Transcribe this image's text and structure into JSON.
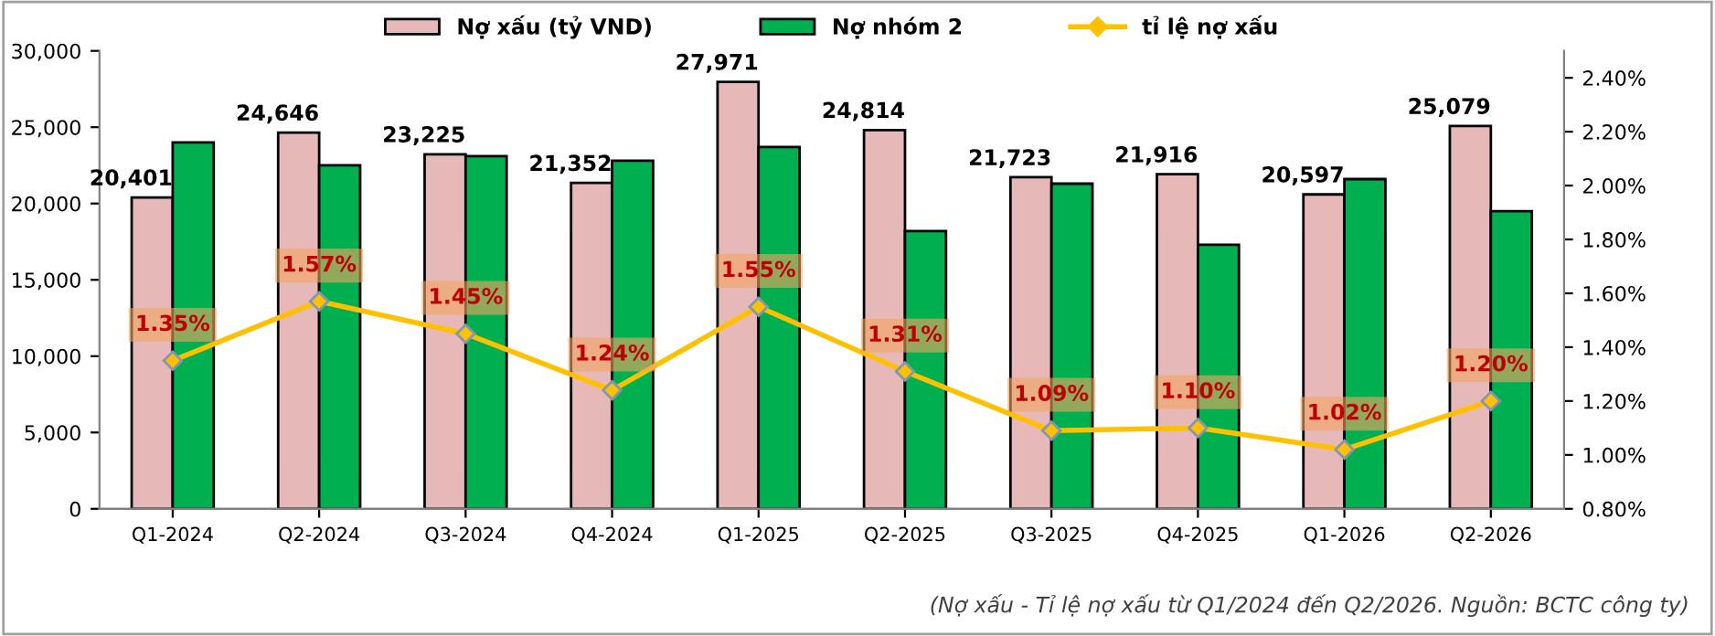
{
  "chart_data": {
    "type": "bar",
    "categories": [
      "Q1-2024",
      "Q2-2024",
      "Q3-2024",
      "Q4-2024",
      "Q1-2025",
      "Q2-2025",
      "Q3-2025",
      "Q4-2025",
      "Q1-2026",
      "Q2-2026"
    ],
    "series": [
      {
        "name": "Nợ xấu (tỷ VND)",
        "color": "#e6b9b8",
        "values": [
          20401,
          24646,
          23225,
          21352,
          27971,
          24814,
          21723,
          21916,
          20597,
          25079
        ],
        "value_labels": [
          "20,401",
          "24,646",
          "23,225",
          "21,352",
          "27,971",
          "24,814",
          "21,723",
          "21,916",
          "20,597",
          "25,079"
        ]
      },
      {
        "name": "Nợ nhóm 2",
        "color": "#00b050",
        "values": [
          24000,
          22500,
          23100,
          22800,
          23700,
          18200,
          21300,
          17300,
          21600,
          19500
        ]
      },
      {
        "name": "tỉ lệ nợ xấu",
        "type": "line",
        "axis": "y2",
        "color": "#ffc000",
        "marker": "diamond",
        "values": [
          1.35,
          1.57,
          1.45,
          1.24,
          1.55,
          1.31,
          1.09,
          1.1,
          1.02,
          1.2
        ],
        "value_labels": [
          "1.35%",
          "1.57%",
          "1.45%",
          "1.24%",
          "1.55%",
          "1.31%",
          "1.09%",
          "1.10%",
          "1.02%",
          "1.20%"
        ]
      }
    ],
    "ylim": [
      0,
      30000
    ],
    "yticks": [
      {
        "value": 0,
        "label": "0"
      },
      {
        "value": 5000,
        "label": "5,000"
      },
      {
        "value": 10000,
        "label": "10,000"
      },
      {
        "value": 15000,
        "label": "15,000"
      },
      {
        "value": 20000,
        "label": "20,000"
      },
      {
        "value": 25000,
        "label": "25,000"
      },
      {
        "value": 30000,
        "label": "30,000"
      }
    ],
    "y2lim": [
      0.8,
      2.5
    ],
    "y2ticks": [
      {
        "value": 0.8,
        "label": "0.80%"
      },
      {
        "value": 1.0,
        "label": "1.00%"
      },
      {
        "value": 1.2,
        "label": "1.20%"
      },
      {
        "value": 1.4,
        "label": "1.40%"
      },
      {
        "value": 1.6,
        "label": "1.60%"
      },
      {
        "value": 1.8,
        "label": "1.80%"
      },
      {
        "value": 2.0,
        "label": "2.00%"
      },
      {
        "value": 2.2,
        "label": "2.20%"
      },
      {
        "value": 2.4,
        "label": "2.40%"
      }
    ],
    "grid": false,
    "legend": "top",
    "annotations": [
      "(Nợ xấu - Tỉ lệ nợ xấu từ Q1/2024 đến Q2/2026. Nguồn: BCTC công ty)"
    ]
  }
}
